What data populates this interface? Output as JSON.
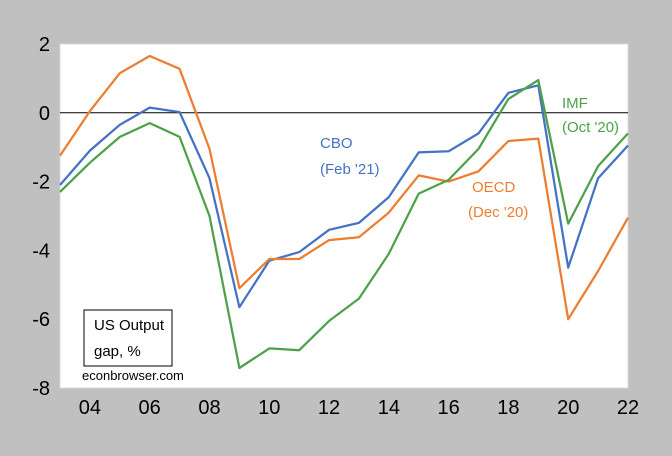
{
  "chart_data": {
    "type": "line",
    "title": "",
    "xlabel": "",
    "ylabel": "",
    "xlim": [
      2003,
      2022
    ],
    "ylim": [
      -8,
      2
    ],
    "x_ticks": [
      "04",
      "06",
      "08",
      "10",
      "12",
      "14",
      "16",
      "18",
      "20",
      "22"
    ],
    "y_ticks": [
      "2",
      "0",
      "-2",
      "-4",
      "-6",
      "-8"
    ],
    "grid": false,
    "zero_line": true,
    "legend_box": {
      "line1": "US Output",
      "line2": "gap, %"
    },
    "credit": "econbrowser.com",
    "x": [
      2003,
      2004,
      2005,
      2006,
      2007,
      2008,
      2009,
      2010,
      2011,
      2012,
      2013,
      2014,
      2015,
      2016,
      2017,
      2018,
      2019,
      2020,
      2021,
      2022
    ],
    "series": [
      {
        "name": "CBO (Feb '21)",
        "label_line1": "CBO",
        "label_line2": "(Feb '21)",
        "color": "#4472c4",
        "values": [
          -2.1,
          -1.1,
          -0.35,
          0.15,
          0.02,
          -1.9,
          -5.65,
          -4.3,
          -4.05,
          -3.4,
          -3.2,
          -2.45,
          -1.15,
          -1.12,
          -0.6,
          0.58,
          0.8,
          -4.5,
          -1.9,
          -0.95
        ]
      },
      {
        "name": "OECD (Dec '20)",
        "label_line1": "OECD",
        "label_line2": "(Dec '20)",
        "color": "#ed7d31",
        "values": [
          -1.25,
          0.05,
          1.15,
          1.65,
          1.28,
          -1.05,
          -5.1,
          -4.25,
          -4.25,
          -3.7,
          -3.62,
          -2.9,
          -1.82,
          -2.0,
          -1.7,
          -0.82,
          -0.75,
          -6.0,
          -4.6,
          -3.05
        ]
      },
      {
        "name": "IMF (Oct '20)",
        "label_line1": "IMF",
        "label_line2": "(Oct '20)",
        "color": "#4ea14a",
        "values": [
          -2.3,
          -1.45,
          -0.7,
          -0.3,
          -0.7,
          -3.0,
          -7.42,
          -6.85,
          -6.9,
          -6.05,
          -5.4,
          -4.1,
          -2.35,
          -1.95,
          -1.05,
          0.4,
          0.95,
          -3.22,
          -1.55,
          -0.6
        ]
      }
    ]
  }
}
